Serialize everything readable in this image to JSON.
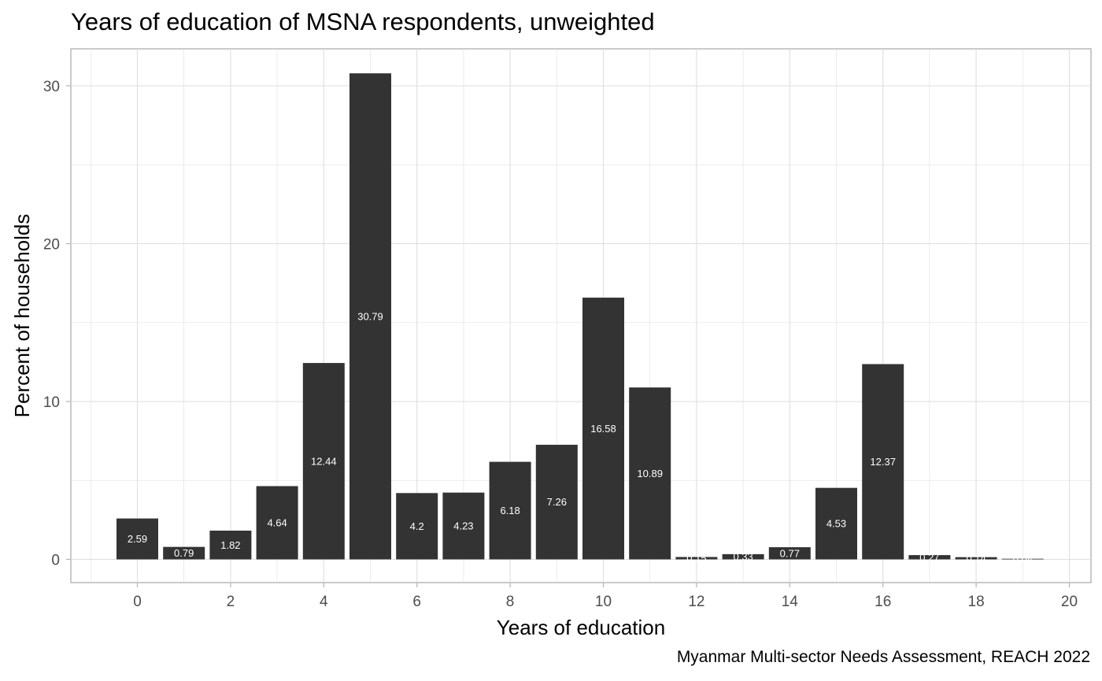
{
  "chart_data": {
    "type": "bar",
    "title": "Years of education of MSNA respondents, unweighted",
    "caption": "Myanmar Multi-sector Needs Assessment, REACH 2022",
    "xlabel": "Years of education",
    "ylabel": "Percent of households",
    "x": [
      0,
      1,
      2,
      3,
      4,
      5,
      6,
      7,
      8,
      9,
      10,
      11,
      12,
      13,
      14,
      15,
      16,
      17,
      18,
      19
    ],
    "values": [
      2.59,
      0.79,
      1.82,
      4.64,
      12.44,
      30.79,
      4.2,
      4.23,
      6.18,
      7.26,
      16.58,
      10.89,
      0.15,
      0.33,
      0.77,
      4.53,
      12.37,
      0.27,
      0.14,
      0.04
    ],
    "data_labels": [
      "2.59",
      "0.79",
      "1.82",
      "4.64",
      "12.44",
      "30.79",
      "4.2",
      "4.23",
      "6.18",
      "7.26",
      "16.58",
      "10.89",
      "0.15",
      "0.33",
      "0.77",
      "4.53",
      "12.37",
      "0.27",
      "0.14",
      "0.04"
    ],
    "xlim": [
      -1.4,
      20.45
    ],
    "ylim": [
      -1.55,
      32.35
    ],
    "x_ticks": [
      0,
      2,
      4,
      6,
      8,
      10,
      12,
      14,
      16,
      18,
      20
    ],
    "y_ticks": [
      0,
      10,
      20,
      30
    ],
    "grid": true,
    "bar_color": "#333333",
    "grid_color": "#dedede",
    "label_color": "#ffffff"
  }
}
